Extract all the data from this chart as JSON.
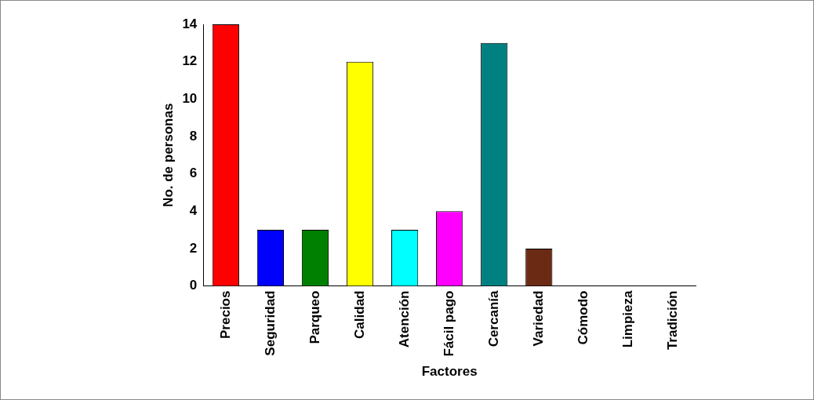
{
  "chart_data": {
    "type": "bar",
    "xlabel": "Factores",
    "ylabel": "No. de personas",
    "categories": [
      "Precios",
      "Seguridad",
      "Parqueo",
      "Calidad",
      "Atención",
      "Fácil pago",
      "Cercanía",
      "Variedad",
      "Cómodo",
      "Limpieza",
      "Tradición"
    ],
    "values": [
      14,
      3,
      3,
      12,
      3,
      4,
      13,
      2,
      0,
      0,
      0
    ],
    "colors": [
      "#ff0000",
      "#0000ff",
      "#008000",
      "#ffff00",
      "#00ffff",
      "#ff00ff",
      "#008080",
      "#6b2a14",
      "#3366cc",
      "#00cc00",
      "#6666cc"
    ],
    "ylim": [
      0,
      14
    ],
    "yticks": [
      0,
      2,
      4,
      6,
      8,
      10,
      12,
      14
    ],
    "grid": false,
    "legend": false
  }
}
